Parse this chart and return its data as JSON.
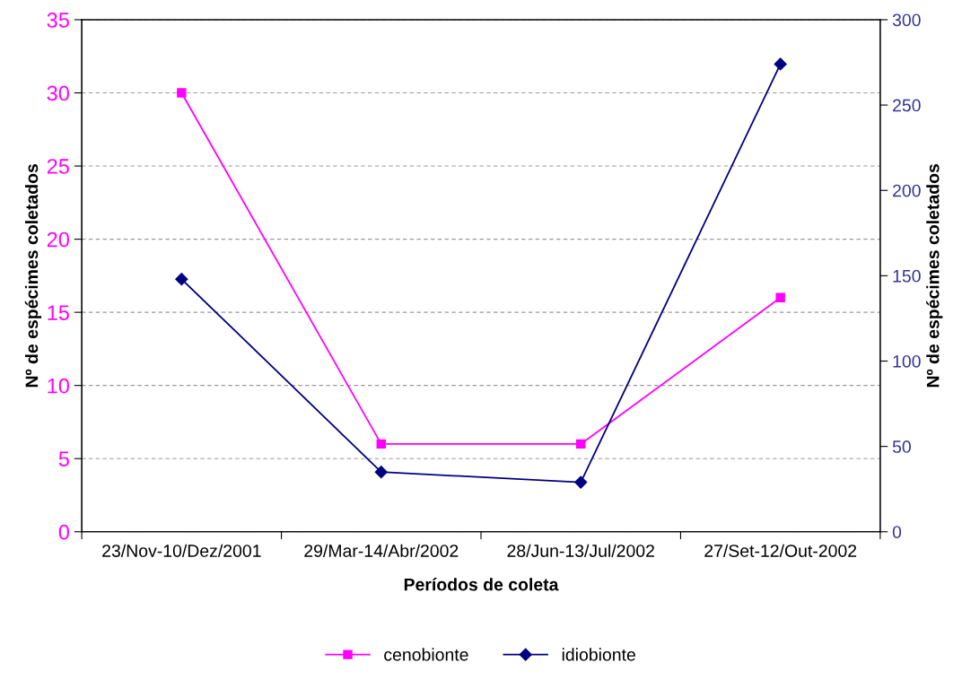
{
  "chart_data": {
    "type": "line",
    "xlabel": "Períodos de coleta",
    "ylabel": "Nº de espécimes coletados",
    "y2label": "Nº de espécimes coletados",
    "categories": [
      "23/Nov-10/Dez/2001",
      "29/Mar-14/Abr/2002",
      "28/Jun-13/Jul/2002",
      "27/Set-12/Out-2002"
    ],
    "series": [
      {
        "name": "cenobionte",
        "color": "#ff00ff",
        "values": [
          30,
          6,
          6,
          16
        ],
        "marker": "square"
      },
      {
        "name": "idiobionte",
        "color": "#000080",
        "values": [
          148,
          35,
          29,
          274
        ],
        "marker": "diamond",
        "axis": "y2"
      }
    ],
    "ylim": [
      0,
      35
    ],
    "yticks": [
      0,
      5,
      10,
      15,
      20,
      25,
      30,
      35
    ],
    "y2lim": [
      0,
      300
    ],
    "y2ticks": [
      0,
      50,
      100,
      150,
      200,
      250,
      300
    ],
    "grid": "y",
    "legend": "bottom",
    "line_style": "solid"
  }
}
